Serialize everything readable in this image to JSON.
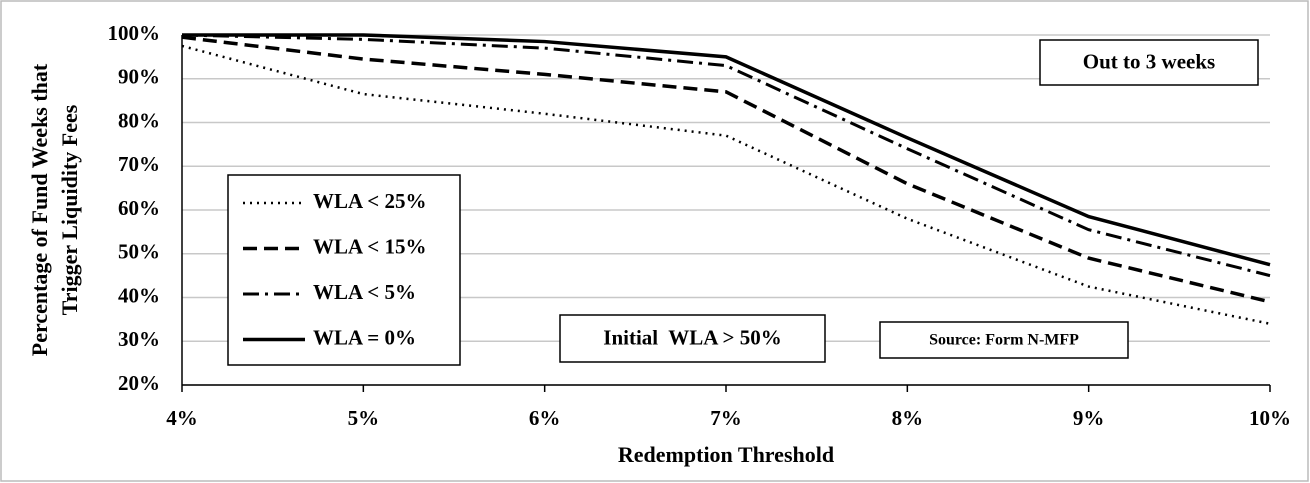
{
  "chart_data": {
    "type": "line",
    "x_label": "Redemption Threshold",
    "y_label": [
      "Percentage of Fund Weeks that",
      "Trigger Liquidity  Fees"
    ],
    "x": [
      4,
      5,
      6,
      7,
      8,
      9,
      10
    ],
    "xlim": [
      4,
      10
    ],
    "xticks": [
      {
        "value": 4,
        "label": "4%"
      },
      {
        "value": 5,
        "label": "5%"
      },
      {
        "value": 6,
        "label": "6%"
      },
      {
        "value": 7,
        "label": "7%"
      },
      {
        "value": 8,
        "label": "8%"
      },
      {
        "value": 9,
        "label": "9%"
      },
      {
        "value": 10,
        "label": "10%"
      }
    ],
    "ylim": [
      20,
      100
    ],
    "yticks": [
      {
        "value": 20,
        "label": "20%"
      },
      {
        "value": 30,
        "label": "30%"
      },
      {
        "value": 40,
        "label": "40%"
      },
      {
        "value": 50,
        "label": "50%"
      },
      {
        "value": 60,
        "label": "60%"
      },
      {
        "value": 70,
        "label": "70%"
      },
      {
        "value": 80,
        "label": "80%"
      },
      {
        "value": 90,
        "label": "90%"
      },
      {
        "value": 100,
        "label": "100%"
      }
    ],
    "grid": true,
    "legend": "left",
    "series": [
      {
        "name": "WLA < 25%",
        "color": "#000000",
        "dash": "dotted",
        "values": [
          97.5,
          86.5,
          82,
          77,
          58,
          42.5,
          34
        ]
      },
      {
        "name": "WLA < 15%",
        "color": "#000000",
        "dash": "dashed",
        "values": [
          99.5,
          94.5,
          91,
          87,
          66,
          49,
          39
        ]
      },
      {
        "name": "WLA < 5%",
        "color": "#000000",
        "dash": "dashdot",
        "values": [
          100,
          99,
          97,
          93,
          74,
          55.5,
          45
        ]
      },
      {
        "name": "WLA = 0%",
        "color": "#000000",
        "dash": "solid",
        "values": [
          100,
          100,
          98.5,
          95,
          76.5,
          58.5,
          47.5
        ]
      }
    ],
    "annotations": [
      "Out to 3 weeks",
      "Initial  WLA > 50%",
      "Source: Form N-MFP"
    ]
  }
}
